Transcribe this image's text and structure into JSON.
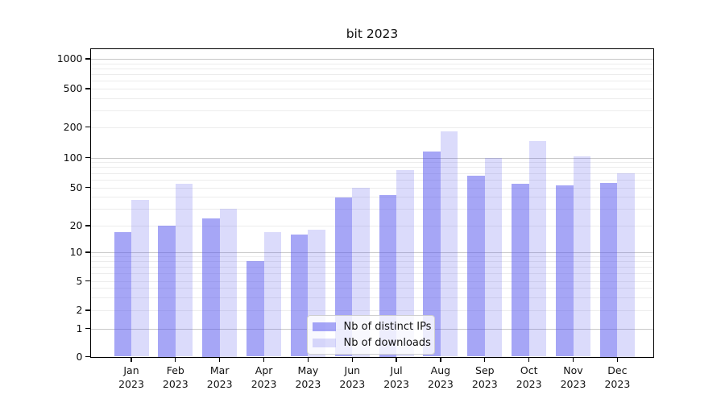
{
  "title": "bit 2023",
  "chart_data": {
    "type": "bar",
    "title": "bit 2023",
    "months": [
      "Jan",
      "Feb",
      "Mar",
      "Apr",
      "May",
      "Jun",
      "Jul",
      "Aug",
      "Sep",
      "Oct",
      "Nov",
      "Dec"
    ],
    "year": "2023",
    "categories": [
      "Jan 2023",
      "Feb 2023",
      "Mar 2023",
      "Apr 2023",
      "May 2023",
      "Jun 2023",
      "Jul 2023",
      "Aug 2023",
      "Sep 2023",
      "Oct 2023",
      "Nov 2023",
      "Dec 2023"
    ],
    "series": [
      {
        "name": "Nb of distinct IPs",
        "color": "rgba(85,85,238,0.52)",
        "values": [
          17,
          20,
          24,
          8,
          16,
          39,
          42,
          115,
          66,
          54,
          52,
          56
        ]
      },
      {
        "name": "Nb of downloads",
        "color": "rgba(85,85,238,0.21)",
        "values": [
          37,
          54,
          30,
          17,
          18,
          50,
          75,
          180,
          100,
          145,
          103,
          70
        ]
      }
    ],
    "y_ticks": [
      0,
      1,
      2,
      5,
      10,
      20,
      50,
      100,
      200,
      500,
      1000
    ],
    "y_scale": "log-like with zero baseline",
    "ylim": [
      0,
      1200
    ],
    "grid": true,
    "legend_position": "inside-bottom-center"
  },
  "colors": {
    "grid_major": "#c8c8c8",
    "grid_minor": "#ececec",
    "axis": "#000000",
    "legend_border": "#d0d0d0"
  }
}
